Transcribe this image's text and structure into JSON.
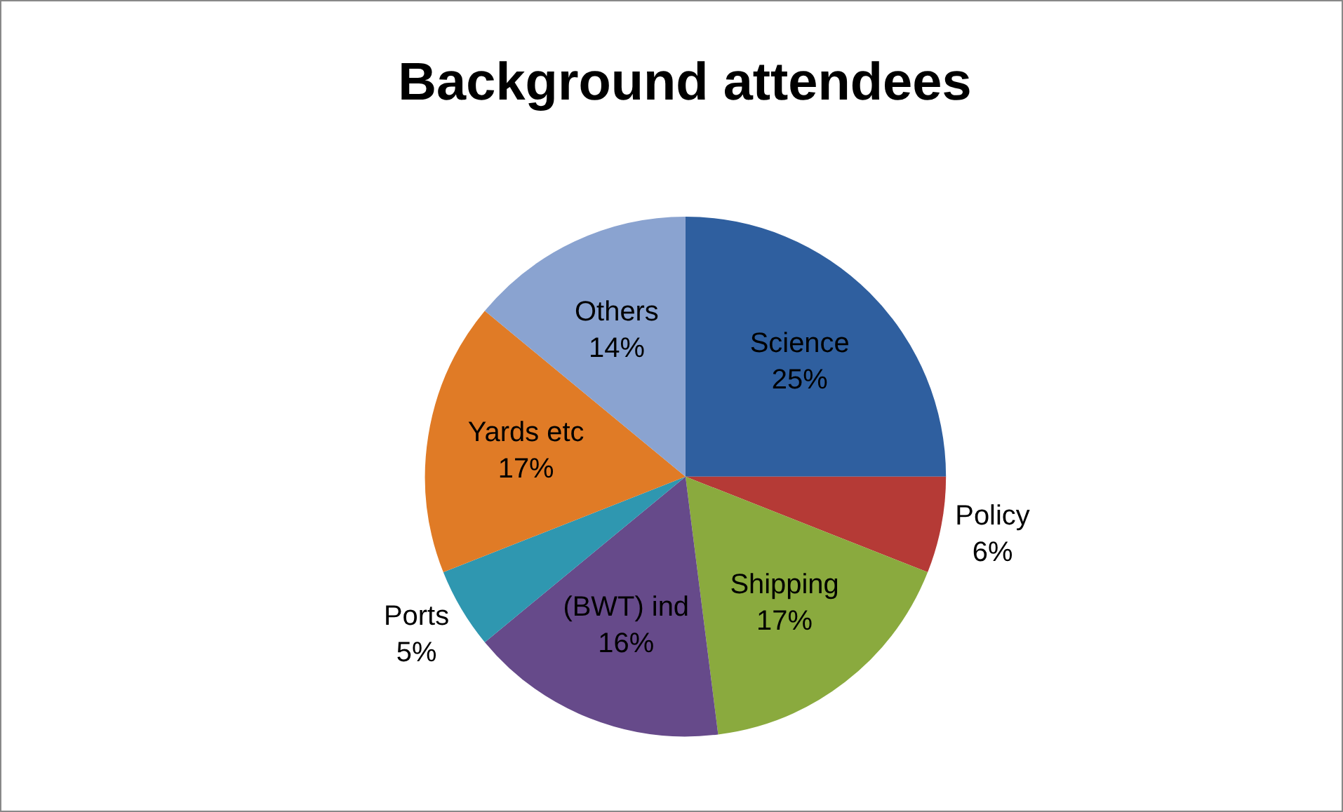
{
  "chart_data": {
    "type": "pie",
    "title": "Background attendees",
    "categories": [
      "Science",
      "Policy",
      "Shipping",
      "(BWT) ind",
      "Ports",
      "Yards etc",
      "Others"
    ],
    "values": [
      25,
      6,
      17,
      16,
      5,
      17,
      14
    ],
    "colors": [
      "#2f5f9f",
      "#b53a36",
      "#8aaa3e",
      "#664a8a",
      "#2f97b0",
      "#e07b26",
      "#8aa3d0"
    ],
    "value_labels": [
      "25%",
      "6%",
      "17%",
      "16%",
      "5%",
      "17%",
      "14%"
    ],
    "legend": false
  }
}
